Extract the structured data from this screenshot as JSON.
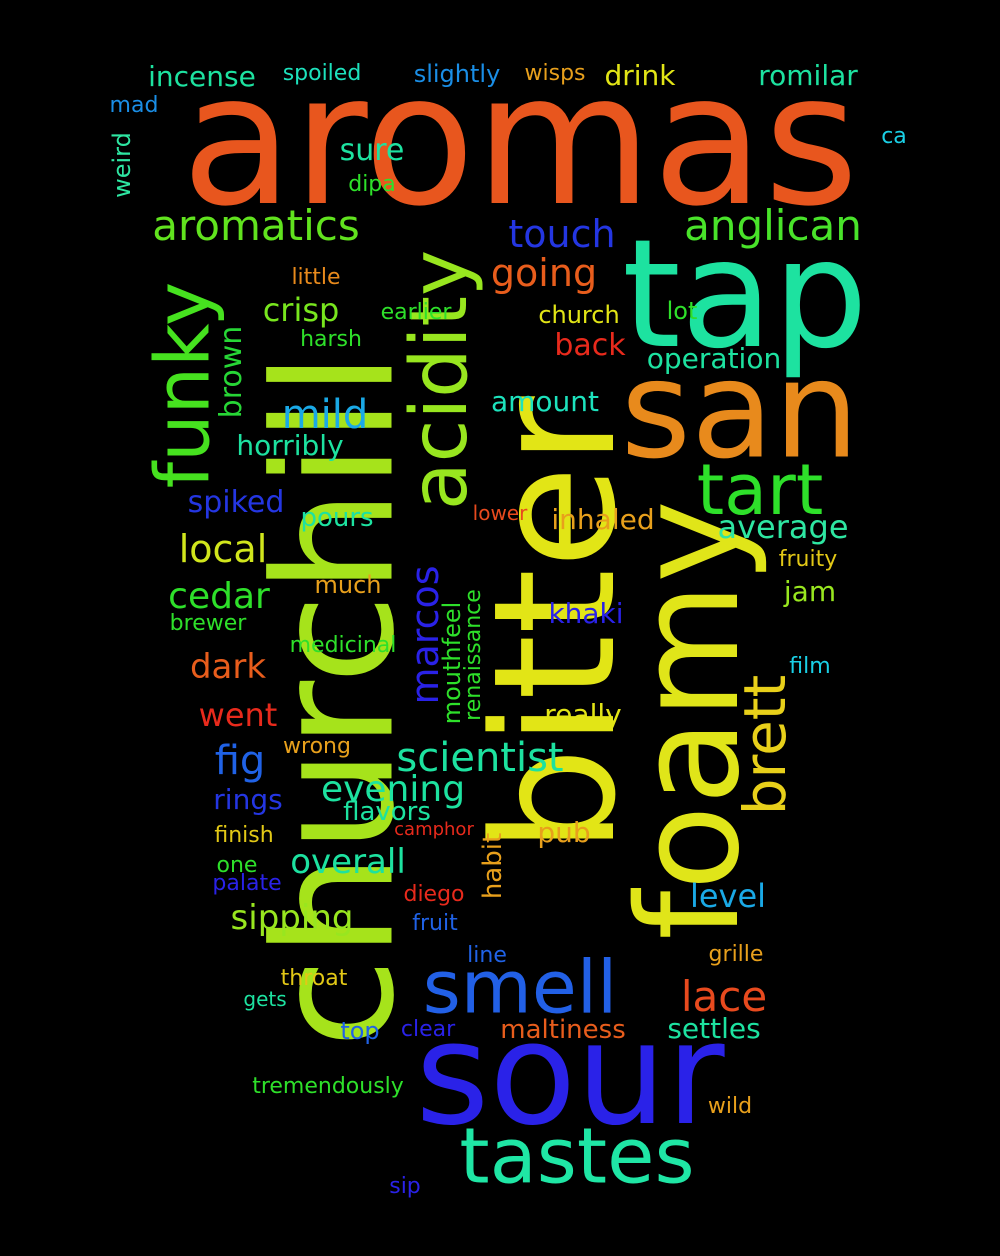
{
  "background": "#000000",
  "words": [
    {
      "text": "aromas",
      "color": "#e8561e"
    },
    {
      "text": "churchill",
      "color": "#a6e31b"
    },
    {
      "text": "bitter",
      "color": "#e2e516"
    },
    {
      "text": "foamy",
      "color": "#e0e519"
    },
    {
      "text": "tap",
      "color": "#1de2a0"
    },
    {
      "text": "san",
      "color": "#e88a1c"
    },
    {
      "text": "sour",
      "color": "#2a22e8"
    },
    {
      "text": "acidity",
      "color": "#98e61f"
    },
    {
      "text": "funky",
      "color": "#46e21f"
    },
    {
      "text": "tastes",
      "color": "#1fe6a5"
    },
    {
      "text": "smell",
      "color": "#2260e6"
    },
    {
      "text": "tart",
      "color": "#2ee02a"
    },
    {
      "text": "brett",
      "color": "#e8d01a"
    },
    {
      "text": "aromatics",
      "color": "#61e31e"
    },
    {
      "text": "anglican",
      "color": "#49e32a"
    },
    {
      "text": "touch",
      "color": "#2436e2"
    },
    {
      "text": "going",
      "color": "#e85d1c"
    },
    {
      "text": "mild",
      "color": "#1aa9e6"
    },
    {
      "text": "marcos",
      "color": "#2a22e8"
    },
    {
      "text": "scientist",
      "color": "#1de2a0"
    },
    {
      "text": "lace",
      "color": "#e84a1e"
    },
    {
      "text": "local",
      "color": "#d1e61c"
    },
    {
      "text": "cedar",
      "color": "#2ee02a"
    },
    {
      "text": "average",
      "color": "#2ee6a2"
    },
    {
      "text": "crisp",
      "color": "#78e61e"
    },
    {
      "text": "brown",
      "color": "#27d636"
    },
    {
      "text": "fig",
      "color": "#2062e6"
    },
    {
      "text": "evening",
      "color": "#1de2a0"
    },
    {
      "text": "overall",
      "color": "#1de2a0"
    },
    {
      "text": "sipping",
      "color": "#98e61f"
    },
    {
      "text": "dark",
      "color": "#e85d1c"
    },
    {
      "text": "went",
      "color": "#e82a1c"
    },
    {
      "text": "level",
      "color": "#1aa9e6"
    },
    {
      "text": "settles",
      "color": "#1de2a0"
    },
    {
      "text": "spiked",
      "color": "#2436e2"
    },
    {
      "text": "back",
      "color": "#e82a1c"
    },
    {
      "text": "horribly",
      "color": "#1de2a0"
    },
    {
      "text": "operation",
      "color": "#1de2a0"
    },
    {
      "text": "incense",
      "color": "#1de2a0"
    },
    {
      "text": "romilar",
      "color": "#1de2a0"
    },
    {
      "text": "drink",
      "color": "#e2e516"
    },
    {
      "text": "sure",
      "color": "#1de2a0"
    },
    {
      "text": "amount",
      "color": "#1de2bd"
    },
    {
      "text": "pours",
      "color": "#1de2a0"
    },
    {
      "text": "inhaled",
      "color": "#e8a01c"
    },
    {
      "text": "jam",
      "color": "#98e61f"
    },
    {
      "text": "khaki",
      "color": "#2a22e8"
    },
    {
      "text": "really",
      "color": "#e2e516"
    },
    {
      "text": "rings",
      "color": "#2436e2"
    },
    {
      "text": "flavors",
      "color": "#1de2a0"
    },
    {
      "text": "pub",
      "color": "#e8a01c"
    },
    {
      "text": "maltiness",
      "color": "#e85d1c"
    },
    {
      "text": "habit",
      "color": "#e8a01c"
    },
    {
      "text": "mouthfeel",
      "color": "#2ee02a"
    },
    {
      "text": "renaissance",
      "color": "#2ee02a"
    },
    {
      "text": "slightly",
      "color": "#1a8ee6"
    },
    {
      "text": "spoiled",
      "color": "#1de2bd"
    },
    {
      "text": "wisps",
      "color": "#e8a01c"
    },
    {
      "text": "mad",
      "color": "#1a8ee6"
    },
    {
      "text": "ca",
      "color": "#1ad0e6"
    },
    {
      "text": "weird",
      "color": "#2ee6a2"
    },
    {
      "text": "dipa",
      "color": "#2ee02a"
    },
    {
      "text": "little",
      "color": "#e88a1c"
    },
    {
      "text": "earlier",
      "color": "#2ee02a"
    },
    {
      "text": "harsh",
      "color": "#2ee02a"
    },
    {
      "text": "church",
      "color": "#e2e516"
    },
    {
      "text": "lot",
      "color": "#2ee02a"
    },
    {
      "text": "lower",
      "color": "#e84a1e"
    },
    {
      "text": "fruity",
      "color": "#e2c816"
    },
    {
      "text": "much",
      "color": "#e8a01c"
    },
    {
      "text": "brewer",
      "color": "#2ee02a"
    },
    {
      "text": "medicinal",
      "color": "#2ee02a"
    },
    {
      "text": "film",
      "color": "#1ad0e6"
    },
    {
      "text": "wrong",
      "color": "#e8a01c"
    },
    {
      "text": "finish",
      "color": "#e2c816"
    },
    {
      "text": "camphor",
      "color": "#e82a1c"
    },
    {
      "text": "one",
      "color": "#2ee02a"
    },
    {
      "text": "palate",
      "color": "#2a22e8"
    },
    {
      "text": "diego",
      "color": "#e82a1c"
    },
    {
      "text": "fruit",
      "color": "#2062e6"
    },
    {
      "text": "line",
      "color": "#2062e6"
    },
    {
      "text": "grille",
      "color": "#e8a01c"
    },
    {
      "text": "throat",
      "color": "#e2c816"
    },
    {
      "text": "gets",
      "color": "#1de2a0"
    },
    {
      "text": "top",
      "color": "#2062e6"
    },
    {
      "text": "clear",
      "color": "#2a22e8"
    },
    {
      "text": "tremendously",
      "color": "#2ee02a"
    },
    {
      "text": "wild",
      "color": "#e8a01c"
    },
    {
      "text": "sip",
      "color": "#2a22e8"
    }
  ]
}
